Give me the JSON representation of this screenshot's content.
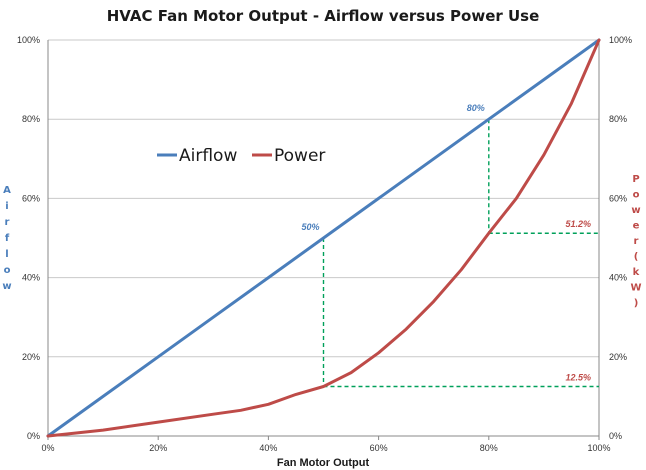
{
  "chart_data": {
    "type": "line",
    "title": "HVAC Fan Motor Output - Airflow versus Power Use",
    "xlabel": "Fan Motor Output",
    "ylabel_left": "Airflow",
    "ylabel_right": "Power (kW)",
    "x_ticks": [
      "0%",
      "20%",
      "40%",
      "60%",
      "80%",
      "100%"
    ],
    "y_ticks": [
      "0%",
      "20%",
      "40%",
      "60%",
      "80%",
      "100%"
    ],
    "xlim": [
      0,
      100
    ],
    "ylim": [
      0,
      100
    ],
    "grid": "horizontal",
    "legend_position": "upper-left",
    "series": [
      {
        "name": "Airflow",
        "color": "#4a7ebb",
        "x": [
          0,
          10,
          20,
          30,
          40,
          50,
          60,
          70,
          80,
          90,
          100
        ],
        "y": [
          0,
          10,
          20,
          30,
          40,
          50,
          60,
          70,
          80,
          90,
          100
        ]
      },
      {
        "name": "Power",
        "color": "#be4b48",
        "x": [
          0,
          10,
          20,
          30,
          35,
          40,
          45,
          50,
          55,
          60,
          65,
          70,
          75,
          80,
          85,
          90,
          95,
          100
        ],
        "y": [
          0,
          1.5,
          3.5,
          5.5,
          6.5,
          8,
          10.5,
          12.5,
          16,
          21,
          27,
          34,
          42,
          51.2,
          60,
          71,
          84,
          100
        ]
      }
    ],
    "annotations": [
      {
        "text": "50%",
        "x": 50,
        "y": 50,
        "color": "#4a7ebb"
      },
      {
        "text": "80%",
        "x": 80,
        "y": 80,
        "color": "#4a7ebb"
      },
      {
        "text": "51.2%",
        "x": 80,
        "y": 51.2,
        "color": "#be4b48"
      },
      {
        "text": "12.5%",
        "x": 50,
        "y": 12.5,
        "color": "#be4b48"
      }
    ],
    "guide_color": "#00a05a"
  }
}
